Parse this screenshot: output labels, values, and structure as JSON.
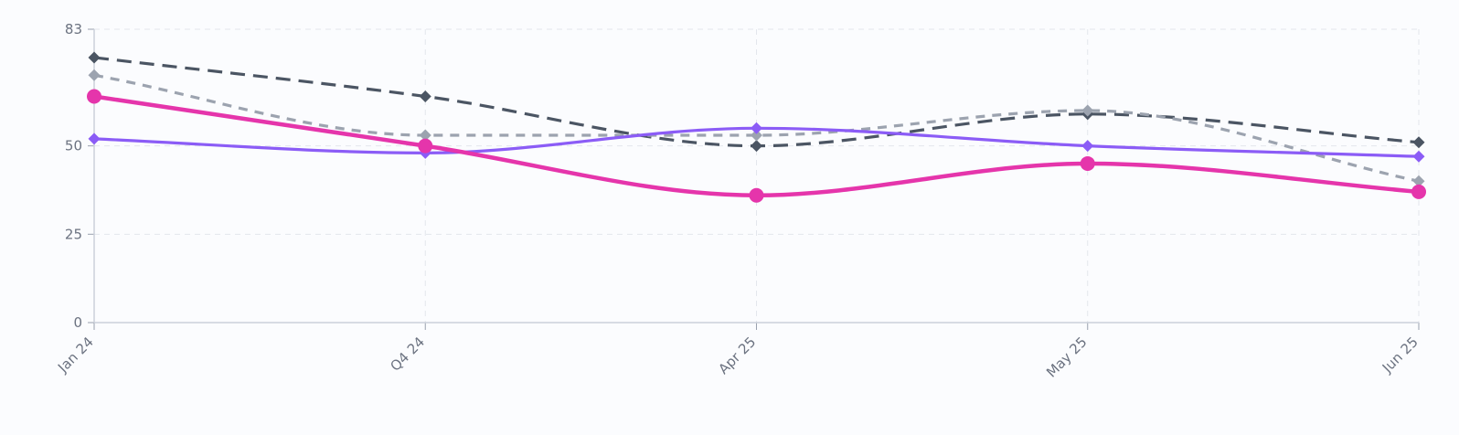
{
  "chart_data": {
    "type": "line",
    "title": "",
    "xlabel": "",
    "ylabel": "",
    "categories": [
      "Jan 24",
      "Q4 24",
      "Apr 25",
      "May 25",
      "Jun 25"
    ],
    "y_ticks": [
      0,
      25,
      50,
      83
    ],
    "ylim": [
      0,
      83
    ],
    "grid": true,
    "series": [
      {
        "key": "s1",
        "values": [
          75,
          64,
          50,
          59,
          51
        ],
        "color": "#4b5563",
        "style": "dashed",
        "marker": "diamond",
        "curve": "smooth"
      },
      {
        "key": "s2",
        "values": [
          70,
          53,
          53,
          60,
          40
        ],
        "color": "#9ca3af",
        "style": "dashed",
        "marker": "diamond",
        "curve": "smooth"
      },
      {
        "key": "s3",
        "values": [
          52,
          48,
          55,
          50,
          47
        ],
        "color": "#8b5cf6",
        "style": "solid",
        "marker": "diamond",
        "curve": "smooth"
      },
      {
        "key": "s4",
        "values": [
          64,
          50,
          36,
          45,
          37
        ],
        "color": "#e535ab",
        "style": "solid",
        "marker": "circle",
        "curve": "smooth"
      }
    ]
  }
}
